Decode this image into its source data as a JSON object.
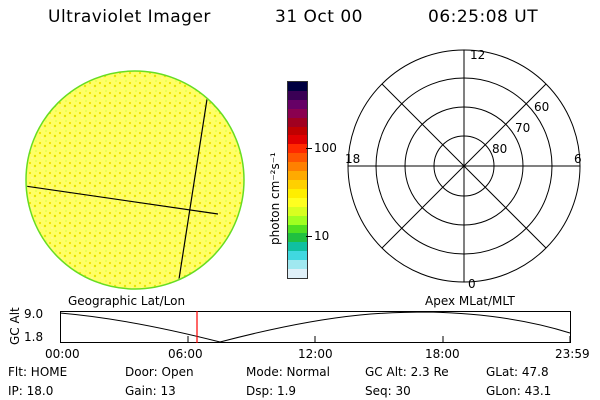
{
  "header": {
    "instrument": "Ultraviolet Imager",
    "date": "31 Oct 00",
    "time": "06:25:08 UT"
  },
  "colorbar": {
    "unit_label": "photon cm⁻²s⁻¹",
    "tick_labels": [
      "100",
      "10"
    ],
    "colors": [
      "#000040",
      "#3a0055",
      "#660066",
      "#8a0050",
      "#a00020",
      "#c00000",
      "#e00000",
      "#ff2a00",
      "#ff5500",
      "#ff8000",
      "#ffaa00",
      "#ffd000",
      "#ffee00",
      "#ffff20",
      "#d8ff20",
      "#a0ff20",
      "#50e020",
      "#20c040",
      "#10c0a0",
      "#40d8e0",
      "#a0e8f0",
      "#e0f0f8"
    ]
  },
  "polar_plot": {
    "ring_labels": [
      "60",
      "70",
      "80"
    ],
    "clock_labels": {
      "top": "12",
      "left": "18",
      "right": "6",
      "bottom": "0"
    }
  },
  "timeline": {
    "left_title": "Geographic Lat/Lon",
    "right_title": "Apex MLat/MLT",
    "axis_label": "GC Alt",
    "y_labels": [
      "9.0",
      "1.8"
    ],
    "x_labels": [
      "00:00",
      "06:00",
      "12:00",
      "18:00",
      "23:59"
    ],
    "marker_color": "#ff0000"
  },
  "info": {
    "flt": "Flt: HOME",
    "ip": "IP: 18.0",
    "door": "Door: Open",
    "gain": "Gain: 13",
    "mode": "Mode: Normal",
    "dsp": "Dsp:    1.9",
    "gcalt": "GC Alt: 2.3 Re",
    "seq": "Seq: 30",
    "glat": "GLat:  47.8",
    "glon": "GLon:  43.1"
  }
}
